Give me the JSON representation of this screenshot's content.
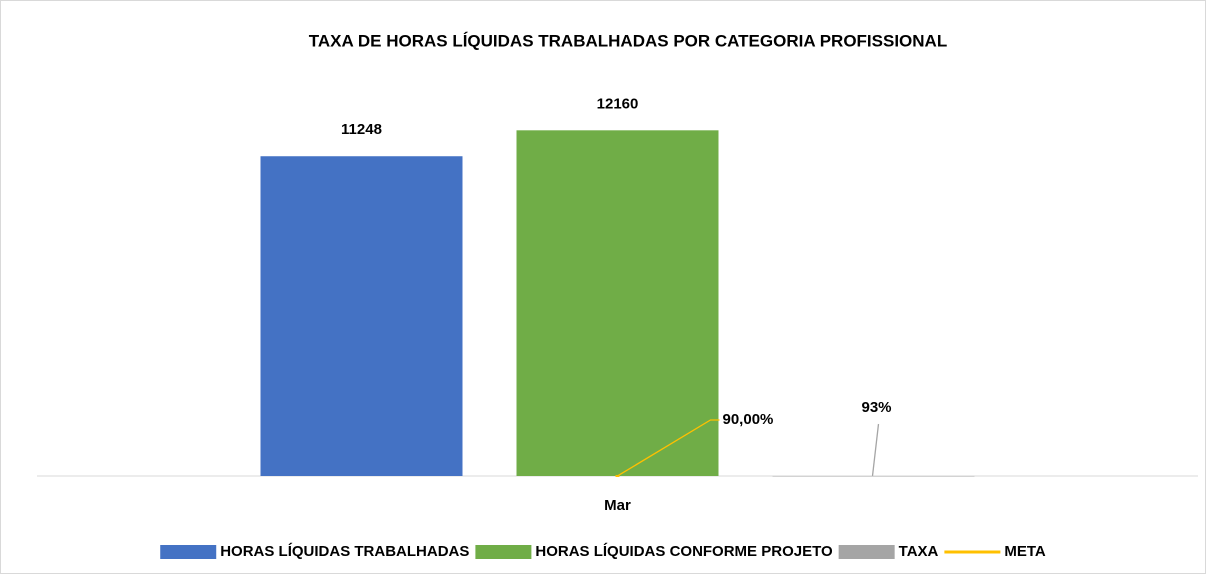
{
  "chart_data": {
    "type": "bar",
    "title": "TAXA DE HORAS LÍQUIDAS  TRABALHADAS POR CATEGORIA PROFISSIONAL",
    "categories": [
      "Mar"
    ],
    "series": [
      {
        "name": "HORAS LÍQUIDAS TRABALHADAS",
        "color": "#4472c4",
        "values": [
          11248
        ]
      },
      {
        "name": "HORAS LÍQUIDAS CONFORME PROJETO",
        "color": "#70ad47",
        "values": [
          12160
        ]
      },
      {
        "name": "TAXA",
        "color": "#a5a5a5",
        "values": [
          0.93
        ],
        "value_labels": [
          "93%"
        ]
      },
      {
        "name": "META",
        "type": "line",
        "color": "#ffc000",
        "values": [
          0.9
        ],
        "value_labels": [
          "90,00%"
        ]
      }
    ],
    "ylim": [
      0,
      14000
    ],
    "legend": "bottom"
  }
}
